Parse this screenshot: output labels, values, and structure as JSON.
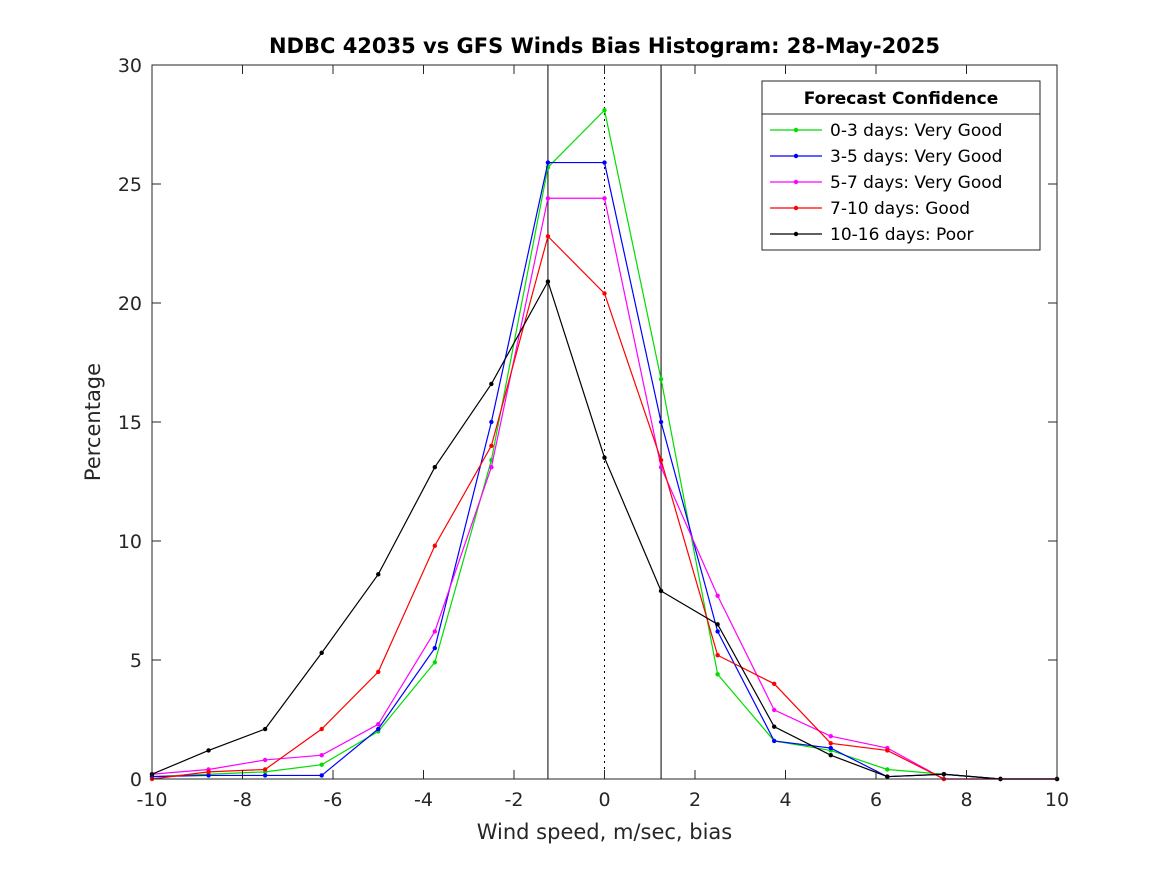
{
  "chart_data": {
    "type": "line",
    "title": "NDBC 42035 vs GFS Winds Bias Histogram: 28-May-2025",
    "xlabel": "Wind speed, m/sec, bias",
    "ylabel": "Percentage",
    "xlim": [
      -10,
      10
    ],
    "ylim": [
      0,
      30
    ],
    "xticks": [
      -10,
      -8,
      -6,
      -4,
      -2,
      0,
      2,
      4,
      6,
      8,
      10
    ],
    "yticks": [
      0,
      5,
      10,
      15,
      20,
      25,
      30
    ],
    "grid": false,
    "reference_lines": [
      {
        "x": -1.25,
        "style": "solid",
        "color": "#000000"
      },
      {
        "x": 0,
        "style": "dotted",
        "color": "#000000"
      },
      {
        "x": 1.25,
        "style": "solid",
        "color": "#000000"
      }
    ],
    "legend": {
      "title": "Forecast Confidence",
      "location": "top-right"
    },
    "x": [
      -10,
      -8.75,
      -7.5,
      -6.25,
      -5,
      -3.75,
      -2.5,
      -1.25,
      0,
      1.25,
      2.5,
      3.75,
      5,
      6.25,
      7.5,
      8.75,
      10
    ],
    "series": [
      {
        "name": "0-3 days: Very Good",
        "color": "#00dd00",
        "values": [
          0.1,
          0.2,
          0.3,
          0.6,
          2.0,
          4.9,
          13.4,
          25.7,
          28.1,
          16.8,
          4.4,
          1.6,
          1.2,
          0.4,
          0.2,
          0,
          0
        ]
      },
      {
        "name": "3-5 days: Very Good",
        "color": "#0000ff",
        "values": [
          0.1,
          0.15,
          0.15,
          0.15,
          2.1,
          5.5,
          15.0,
          25.9,
          25.9,
          15.0,
          6.2,
          1.6,
          1.3,
          0.1,
          0.2,
          0,
          0
        ]
      },
      {
        "name": "5-7 days: Very Good",
        "color": "#ff00ff",
        "values": [
          0.2,
          0.4,
          0.8,
          1.0,
          2.3,
          6.2,
          13.1,
          24.4,
          24.4,
          13.1,
          7.7,
          2.9,
          1.8,
          1.3,
          0,
          0,
          0
        ]
      },
      {
        "name": "7-10 days: Good",
        "color": "#ff0000",
        "values": [
          0,
          0.3,
          0.4,
          2.1,
          4.5,
          9.8,
          14.0,
          22.8,
          20.4,
          13.4,
          5.2,
          4.0,
          1.5,
          1.2,
          0,
          0,
          0
        ]
      },
      {
        "name": "10-16 days: Poor",
        "color": "#000000",
        "values": [
          0.2,
          1.2,
          2.1,
          5.3,
          8.6,
          13.1,
          16.6,
          20.9,
          13.5,
          7.9,
          6.5,
          2.2,
          1.0,
          0.1,
          0.2,
          0,
          0
        ]
      }
    ]
  }
}
